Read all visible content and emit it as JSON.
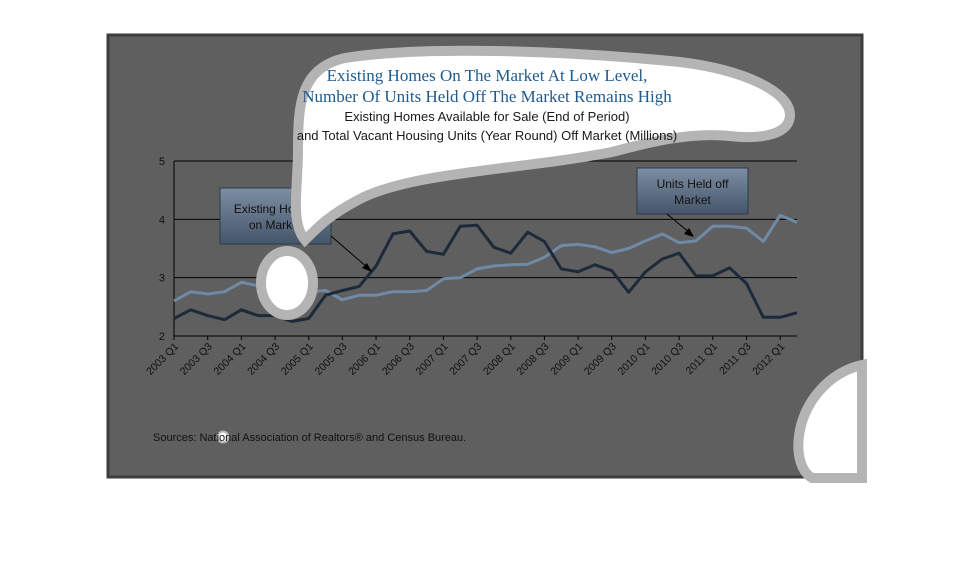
{
  "chart_data": {
    "type": "line",
    "title": "Existing Homes On The Market At Low Level,",
    "title_line2": "Number Of Units Held Off The Market Remains High",
    "subtitle": "Existing Homes Available for Sale (End of Period)",
    "subtitle_line2": "and Total Vacant Housing Units (Year Round) Off Market (Millions)",
    "source": "Sources: National Association of Realtors® and Census Bureau.",
    "xlabel": "",
    "ylabel": "",
    "ylim": [
      2,
      5
    ],
    "yticks": [
      "2",
      "3",
      "4",
      "5"
    ],
    "grid": true,
    "x": [
      "2003 Q1",
      "2003 Q2",
      "2003 Q3",
      "2003 Q4",
      "2004 Q1",
      "2004 Q2",
      "2004 Q3",
      "2004 Q4",
      "2005 Q1",
      "2005 Q2",
      "2005 Q3",
      "2005 Q4",
      "2006 Q1",
      "2006 Q2",
      "2006 Q3",
      "2006 Q4",
      "2007 Q1",
      "2007 Q2",
      "2007 Q3",
      "2007 Q4",
      "2008 Q1",
      "2008 Q2",
      "2008 Q3",
      "2008 Q4",
      "2009 Q1",
      "2009 Q2",
      "2009 Q3",
      "2009 Q4",
      "2010 Q1",
      "2010 Q2",
      "2010 Q3",
      "2010 Q4",
      "2011 Q1",
      "2011 Q2",
      "2011 Q3",
      "2011 Q4",
      "2012 Q1",
      "2012 Q2"
    ],
    "x_tick_labels": [
      "2003 Q1",
      "2003 Q3",
      "2004 Q1",
      "2004 Q3",
      "2005 Q1",
      "2005 Q3",
      "2006 Q1",
      "2006 Q3",
      "2007 Q1",
      "2007 Q3",
      "2008 Q1",
      "2008 Q3",
      "2009 Q1",
      "2009 Q3",
      "2010 Q1",
      "2010 Q3",
      "2011 Q1",
      "2011 Q3",
      "2012 Q1"
    ],
    "series": [
      {
        "name": "Existing Homes on Market",
        "color": "#1c2a3a",
        "values": [
          2.3,
          2.45,
          2.35,
          2.28,
          2.45,
          2.35,
          2.35,
          2.25,
          2.3,
          2.7,
          2.78,
          2.85,
          3.2,
          3.75,
          3.8,
          3.45,
          3.4,
          3.88,
          3.9,
          3.52,
          3.42,
          3.78,
          3.62,
          3.15,
          3.1,
          3.22,
          3.12,
          2.75,
          3.1,
          3.32,
          3.42,
          3.03,
          3.03,
          3.17,
          2.9,
          2.32,
          2.32,
          2.4
        ]
      },
      {
        "name": "Units Held off Market",
        "color": "#6e8aa6",
        "values": [
          2.6,
          2.76,
          2.72,
          2.76,
          2.92,
          2.86,
          2.78,
          2.62,
          2.76,
          2.78,
          2.62,
          2.7,
          2.7,
          2.76,
          2.76,
          2.78,
          2.98,
          3.0,
          3.15,
          3.2,
          3.22,
          3.23,
          3.35,
          3.55,
          3.57,
          3.53,
          3.43,
          3.5,
          3.63,
          3.75,
          3.6,
          3.63,
          3.88,
          3.88,
          3.85,
          3.62,
          4.07,
          3.95
        ]
      }
    ],
    "annotations": [
      {
        "label_line1": "Existing Homes",
        "label_line2": "on Market",
        "target_series": "Existing Homes on Market",
        "target_x": "2005 Q4"
      },
      {
        "label_line1": "Units Held off",
        "label_line2": "Market",
        "target_series": "Units Held off Market",
        "target_x": "2010 Q4"
      }
    ]
  },
  "colors": {
    "panel_background": "#5f5f5f",
    "panel_border": "#3d3d3d",
    "title": "#1f5a8c",
    "callout_fill": "#5a6b7e",
    "mask": "#ffffff"
  }
}
